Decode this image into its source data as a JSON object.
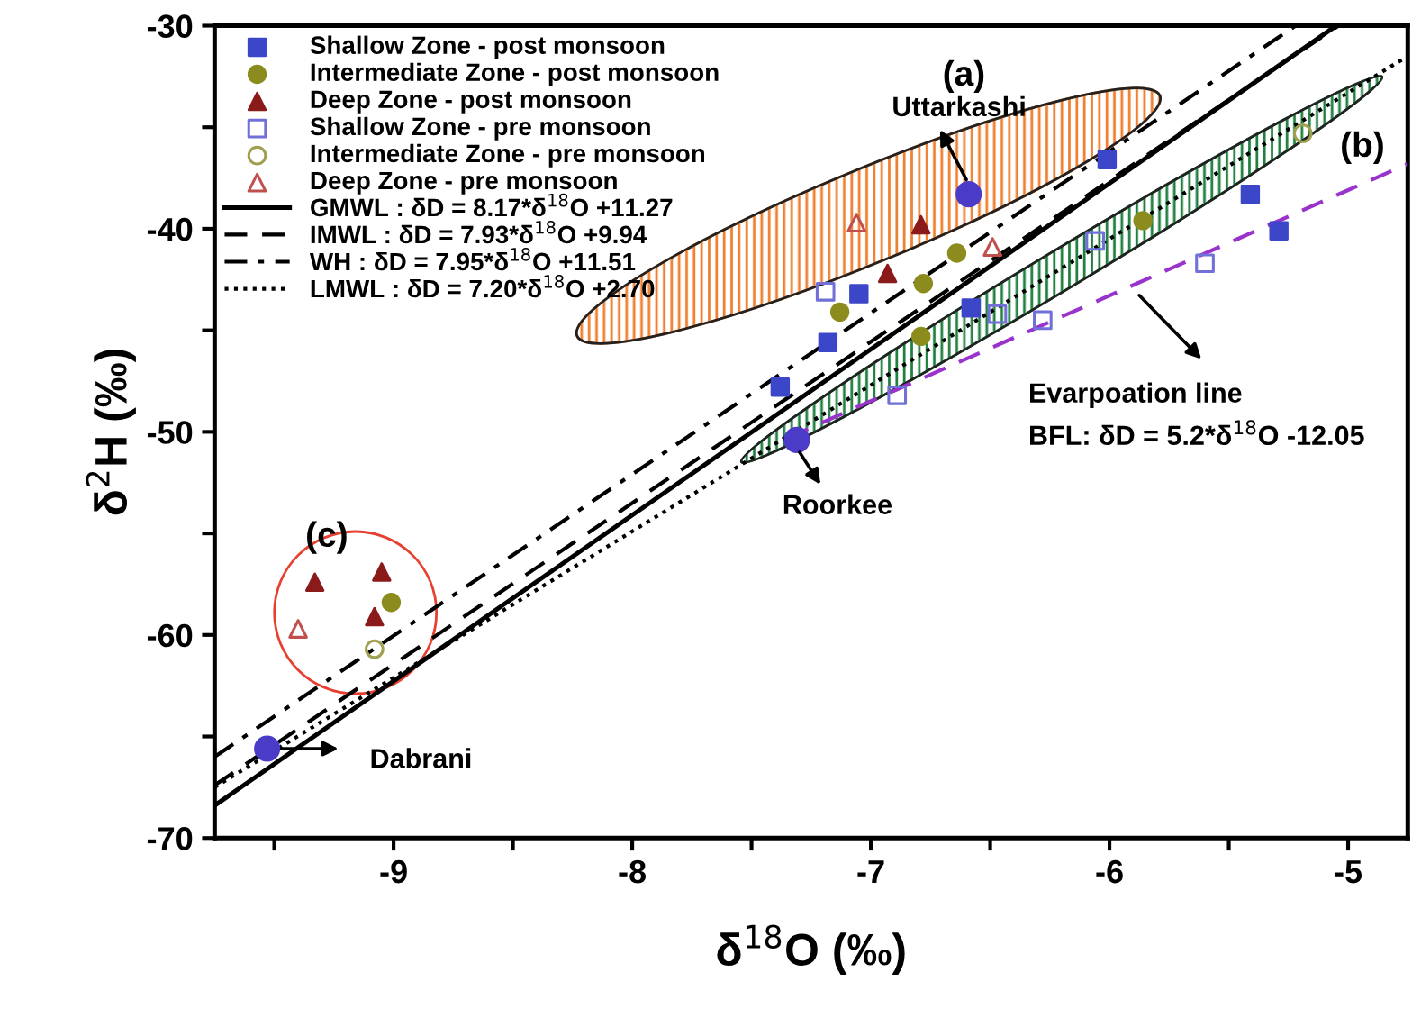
{
  "chart_data": {
    "type": "scatter",
    "xlabel": "δ$^{18}$O (‰)",
    "ylabel": "δ$^{2}$H (‰)",
    "xlim": [
      -9.75,
      -4.75
    ],
    "ylim": [
      -70,
      -30
    ],
    "xticks": [
      {
        "value": -9.5,
        "label": null
      },
      -9,
      {
        "value": -8.5,
        "label": null
      },
      -8,
      {
        "value": -7.5,
        "label": null
      },
      -7,
      {
        "value": -6.5,
        "label": null
      },
      -6,
      {
        "value": -5.5,
        "label": null
      },
      -5
    ],
    "yticks": [
      -70,
      {
        "value": -65,
        "label": null
      },
      -60,
      {
        "value": -55,
        "label": null
      },
      -50,
      {
        "value": -45,
        "label": null
      },
      -40,
      {
        "value": -35,
        "label": null
      },
      -30
    ],
    "grid": false,
    "legend": "top left",
    "series": [
      {
        "name": "Shallow Zone - post monsoon",
        "marker": "square",
        "color": "#3c46c8",
        "x": [
          -6.01,
          -5.41,
          -5.29,
          -7.05,
          -7.18,
          -6.58,
          -7.38
        ],
        "values": [
          -36.6,
          -38.3,
          -40.1,
          -43.2,
          -45.6,
          -43.9,
          -47.8
        ]
      },
      {
        "name": "Intermediate Zone - post monsoon",
        "marker": "circle",
        "color": "#8c8c1e",
        "x": [
          -5.86,
          -6.64,
          -6.78,
          -7.13,
          -6.79,
          -9.01
        ],
        "values": [
          -39.6,
          -41.2,
          -42.7,
          -44.1,
          -45.3,
          -58.4
        ]
      },
      {
        "name": "Deep Zone - post monsoon",
        "marker": "triangle",
        "color": "#8b1a1a",
        "x": [
          -6.79,
          -6.93,
          -9.33,
          -9.05,
          -9.08
        ],
        "values": [
          -39.8,
          -42.2,
          -57.4,
          -56.9,
          -59.1
        ]
      },
      {
        "name": "Shallow Zone - pre monsoon",
        "marker": "square",
        "color": "#7070d8",
        "x": [
          -7.19,
          -5.6,
          -6.28,
          -6.06,
          -6.89,
          -6.47
        ],
        "values": [
          -43.1,
          -41.7,
          -44.5,
          -40.6,
          -48.2,
          -44.2
        ]
      },
      {
        "name": "Intermediate Zone - pre monsoon",
        "marker": "circle",
        "color": "#a0a050",
        "x": [
          -9.08,
          -5.19
        ],
        "values": [
          -60.7,
          -35.3
        ]
      },
      {
        "name": "Deep Zone - pre monsoon",
        "marker": "triangle",
        "color": "#c0504d",
        "x": [
          -7.06,
          -6.49,
          -9.4
        ],
        "values": [
          -39.7,
          -40.9,
          -59.7
        ]
      },
      {
        "name": "GMWL : δD = 8.17*δ$^{18}$O +11.27",
        "type": "line",
        "line_style": "solid",
        "marker": "none",
        "color": "#000000",
        "x": [
          -9.75,
          -5.05
        ],
        "values": [
          -68.4,
          -30.0
        ]
      },
      {
        "name": "IMWL : δD = 7.93*δ$^{18}$O +9.94",
        "type": "line",
        "line_style": "dashed",
        "marker": "none",
        "color": "#000000",
        "x": [
          -9.75,
          -5.04
        ],
        "values": [
          -67.4,
          -30.0
        ]
      },
      {
        "name": "WH : δD = 7.95*δ$^{18}$O +11.51",
        "type": "line",
        "line_style": "dashdot",
        "marker": "none",
        "color": "#000000",
        "x": [
          -9.75,
          -5.22
        ],
        "values": [
          -66.0,
          -30.0
        ]
      },
      {
        "name": "LMWL : δD = 7.20*δ$^{18}$O +2.70",
        "type": "line",
        "line_style": "dotted",
        "marker": "none",
        "color": "#000000",
        "x": [
          -9.75,
          -4.75
        ],
        "values": [
          -67.5,
          -31.5
        ]
      },
      {
        "type": "line",
        "line_style": "dashed",
        "marker": "none",
        "color": "#9933cc",
        "x": [
          -7.35,
          -4.75
        ],
        "values": [
          -50.3,
          -36.8
        ]
      },
      {
        "marker": "circle",
        "color": "#4b3cc8",
        "x": [
          -6.59,
          -9.53,
          -7.31
        ],
        "values": [
          -38.3,
          -65.6,
          -50.4
        ]
      }
    ],
    "annotations": [
      "Uttarkashi",
      "Roorkee",
      "Dabrani",
      "Evarpoation line",
      "BFL: δD = 5.2*δ$^{18}$O -12.05",
      "(a)",
      "(b)",
      "(c)"
    ]
  }
}
